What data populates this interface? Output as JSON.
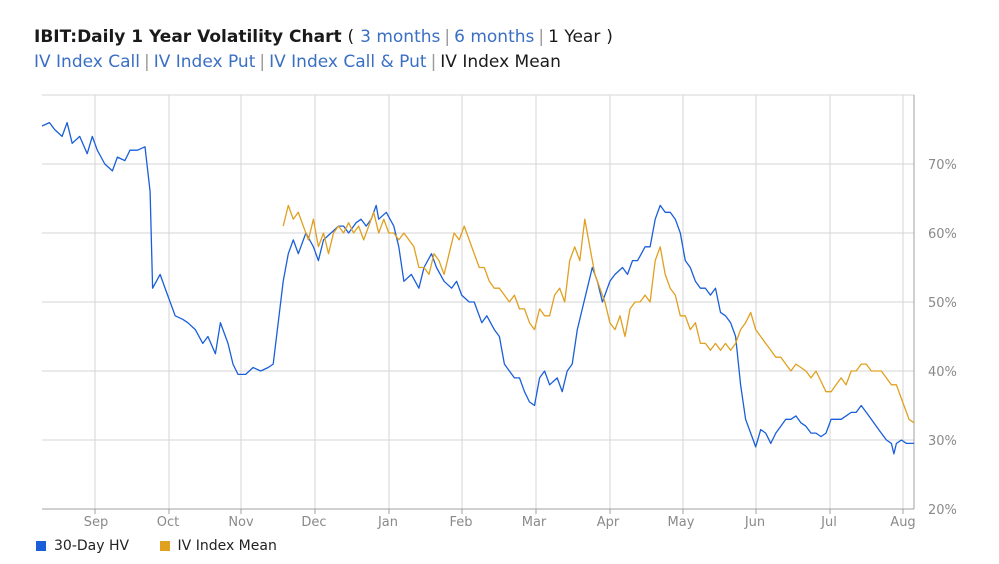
{
  "header": {
    "title": "IBIT:Daily 1 Year Volatility Chart",
    "open_paren": "(",
    "close_paren": ")",
    "sep": "|",
    "ranges": [
      "3 months",
      "6 months",
      "1 Year"
    ],
    "series_links": [
      "IV Index Call",
      "IV Index Put",
      "IV Index Call & Put",
      "IV Index Mean"
    ]
  },
  "chart_data": {
    "type": "line",
    "xlabel": "",
    "ylabel": "",
    "x_ticks": [
      "Sep",
      "Oct",
      "Nov",
      "Dec",
      "Jan",
      "Feb",
      "Mar",
      "Apr",
      "May",
      "Jun",
      "Jul",
      "Aug"
    ],
    "y_ticks": [
      "20%",
      "30%",
      "40%",
      "50%",
      "60%",
      "70%"
    ],
    "ylim": [
      20,
      80
    ],
    "y_axis_side": "right",
    "grid": true,
    "legend_position": "bottom-left",
    "series": [
      {
        "name": "30-Day HV",
        "color": "#1a5fd9",
        "points": [
          [
            0,
            75.5
          ],
          [
            3,
            76
          ],
          [
            5,
            75
          ],
          [
            8,
            74
          ],
          [
            10,
            76
          ],
          [
            12,
            73
          ],
          [
            15,
            74
          ],
          [
            18,
            71.5
          ],
          [
            20,
            74
          ],
          [
            22,
            72
          ],
          [
            25,
            70
          ],
          [
            28,
            69
          ],
          [
            30,
            71
          ],
          [
            33,
            70.5
          ],
          [
            35,
            72
          ],
          [
            38,
            72
          ],
          [
            41,
            72.5
          ],
          [
            43,
            66
          ],
          [
            44,
            52
          ],
          [
            47,
            54
          ],
          [
            50,
            51
          ],
          [
            53,
            48
          ],
          [
            56,
            47.5
          ],
          [
            58,
            47
          ],
          [
            61,
            46
          ],
          [
            64,
            44
          ],
          [
            66,
            45
          ],
          [
            69,
            42.5
          ],
          [
            71,
            47
          ],
          [
            74,
            44
          ],
          [
            76,
            41
          ],
          [
            78,
            39.5
          ],
          [
            81,
            39.5
          ],
          [
            84,
            40.5
          ],
          [
            87,
            40
          ],
          [
            90,
            40.5
          ],
          [
            92,
            41
          ],
          [
            94,
            47
          ],
          [
            96,
            53
          ],
          [
            98,
            57
          ],
          [
            100,
            59
          ],
          [
            102,
            57
          ],
          [
            105,
            60
          ],
          [
            108,
            58
          ],
          [
            110,
            56
          ],
          [
            112,
            59
          ],
          [
            115,
            60
          ],
          [
            118,
            61
          ],
          [
            120,
            61
          ],
          [
            122,
            60
          ],
          [
            125,
            61.5
          ],
          [
            127,
            62
          ],
          [
            129,
            61
          ],
          [
            131,
            62
          ],
          [
            133,
            64
          ],
          [
            134,
            62
          ],
          [
            137,
            63
          ],
          [
            140,
            61
          ],
          [
            142,
            58
          ],
          [
            144,
            53
          ],
          [
            147,
            54
          ],
          [
            150,
            52
          ],
          [
            152,
            55
          ],
          [
            155,
            57
          ],
          [
            157,
            55
          ],
          [
            160,
            53
          ],
          [
            163,
            52
          ],
          [
            165,
            53
          ],
          [
            167,
            51
          ],
          [
            170,
            50
          ],
          [
            172,
            50
          ],
          [
            175,
            47
          ],
          [
            177,
            48
          ],
          [
            180,
            46
          ],
          [
            182,
            45
          ],
          [
            184,
            41
          ],
          [
            186,
            40
          ],
          [
            188,
            39
          ],
          [
            190,
            39
          ],
          [
            192,
            37
          ],
          [
            194,
            35.5
          ],
          [
            196,
            35
          ],
          [
            198,
            39
          ],
          [
            200,
            40
          ],
          [
            202,
            38
          ],
          [
            205,
            39
          ],
          [
            207,
            37
          ],
          [
            209,
            40
          ],
          [
            211,
            41
          ],
          [
            213,
            46
          ],
          [
            215,
            49
          ],
          [
            217,
            52
          ],
          [
            219,
            55
          ],
          [
            221,
            53
          ],
          [
            223,
            50
          ],
          [
            226,
            53
          ],
          [
            228,
            54
          ],
          [
            231,
            55
          ],
          [
            233,
            54
          ],
          [
            235,
            56
          ],
          [
            237,
            56
          ],
          [
            240,
            58
          ],
          [
            242,
            58
          ],
          [
            244,
            62
          ],
          [
            246,
            64
          ],
          [
            248,
            63
          ],
          [
            250,
            63
          ],
          [
            252,
            62
          ],
          [
            254,
            60
          ],
          [
            256,
            56
          ],
          [
            258,
            55
          ],
          [
            260,
            53
          ],
          [
            262,
            52
          ],
          [
            264,
            52
          ],
          [
            266,
            51
          ],
          [
            268,
            52
          ],
          [
            270,
            48.5
          ],
          [
            272,
            48
          ],
          [
            274,
            47
          ],
          [
            276,
            45
          ],
          [
            278,
            38
          ],
          [
            280,
            33
          ],
          [
            282,
            31
          ],
          [
            284,
            29
          ],
          [
            286,
            31.5
          ],
          [
            288,
            31
          ],
          [
            290,
            29.5
          ],
          [
            292,
            31
          ],
          [
            294,
            32
          ],
          [
            296,
            33
          ],
          [
            298,
            33
          ],
          [
            300,
            33.5
          ],
          [
            302,
            32.5
          ],
          [
            304,
            32
          ],
          [
            306,
            31
          ],
          [
            308,
            31
          ],
          [
            310,
            30.5
          ],
          [
            312,
            31
          ],
          [
            314,
            33
          ],
          [
            316,
            33
          ],
          [
            318,
            33
          ],
          [
            320,
            33.5
          ],
          [
            322,
            34
          ],
          [
            324,
            34
          ],
          [
            326,
            35
          ],
          [
            328,
            34
          ],
          [
            330,
            33
          ],
          [
            332,
            32
          ],
          [
            334,
            31
          ],
          [
            336,
            30
          ],
          [
            338,
            29.5
          ],
          [
            339,
            28
          ],
          [
            340,
            29.5
          ],
          [
            342,
            30
          ],
          [
            344,
            29.5
          ],
          [
            347,
            29.5
          ]
        ]
      },
      {
        "name": "IV Index Mean",
        "color": "#e0a020",
        "points": [
          [
            96,
            61
          ],
          [
            98,
            64
          ],
          [
            100,
            62
          ],
          [
            102,
            63
          ],
          [
            104,
            61
          ],
          [
            106,
            59
          ],
          [
            108,
            62
          ],
          [
            110,
            58
          ],
          [
            112,
            60
          ],
          [
            114,
            57
          ],
          [
            116,
            60
          ],
          [
            118,
            61
          ],
          [
            120,
            60
          ],
          [
            122,
            61.5
          ],
          [
            124,
            60
          ],
          [
            126,
            61
          ],
          [
            128,
            59
          ],
          [
            130,
            61
          ],
          [
            132,
            63
          ],
          [
            134,
            60
          ],
          [
            136,
            62
          ],
          [
            138,
            60
          ],
          [
            140,
            60
          ],
          [
            142,
            59
          ],
          [
            144,
            60
          ],
          [
            146,
            59
          ],
          [
            148,
            58
          ],
          [
            150,
            55
          ],
          [
            152,
            55
          ],
          [
            154,
            54
          ],
          [
            156,
            57
          ],
          [
            158,
            56
          ],
          [
            160,
            54
          ],
          [
            162,
            57
          ],
          [
            164,
            60
          ],
          [
            166,
            59
          ],
          [
            168,
            61
          ],
          [
            170,
            59
          ],
          [
            172,
            57
          ],
          [
            174,
            55
          ],
          [
            176,
            55
          ],
          [
            178,
            53
          ],
          [
            180,
            52
          ],
          [
            182,
            52
          ],
          [
            184,
            51
          ],
          [
            186,
            50
          ],
          [
            188,
            51
          ],
          [
            190,
            49
          ],
          [
            192,
            49
          ],
          [
            194,
            47
          ],
          [
            196,
            46
          ],
          [
            198,
            49
          ],
          [
            200,
            48
          ],
          [
            202,
            48
          ],
          [
            204,
            51
          ],
          [
            206,
            52
          ],
          [
            208,
            50
          ],
          [
            210,
            56
          ],
          [
            212,
            58
          ],
          [
            214,
            56
          ],
          [
            216,
            62
          ],
          [
            218,
            58
          ],
          [
            220,
            54
          ],
          [
            222,
            52
          ],
          [
            224,
            50
          ],
          [
            226,
            47
          ],
          [
            228,
            46
          ],
          [
            230,
            48
          ],
          [
            232,
            45
          ],
          [
            234,
            49
          ],
          [
            236,
            50
          ],
          [
            238,
            50
          ],
          [
            240,
            51
          ],
          [
            242,
            50
          ],
          [
            244,
            56
          ],
          [
            246,
            58
          ],
          [
            248,
            54
          ],
          [
            250,
            52
          ],
          [
            252,
            51
          ],
          [
            254,
            48
          ],
          [
            256,
            48
          ],
          [
            258,
            46
          ],
          [
            260,
            47
          ],
          [
            262,
            44
          ],
          [
            264,
            44
          ],
          [
            266,
            43
          ],
          [
            268,
            44
          ],
          [
            270,
            43
          ],
          [
            272,
            44
          ],
          [
            274,
            43
          ],
          [
            276,
            44
          ],
          [
            278,
            46
          ],
          [
            280,
            47
          ],
          [
            282,
            48.5
          ],
          [
            284,
            46
          ],
          [
            286,
            45
          ],
          [
            288,
            44
          ],
          [
            290,
            43
          ],
          [
            292,
            42
          ],
          [
            294,
            42
          ],
          [
            296,
            41
          ],
          [
            298,
            40
          ],
          [
            300,
            41
          ],
          [
            302,
            40.5
          ],
          [
            304,
            40
          ],
          [
            306,
            39
          ],
          [
            308,
            40
          ],
          [
            310,
            38.5
          ],
          [
            312,
            37
          ],
          [
            314,
            37
          ],
          [
            316,
            38
          ],
          [
            318,
            39
          ],
          [
            320,
            38
          ],
          [
            322,
            40
          ],
          [
            324,
            40
          ],
          [
            326,
            41
          ],
          [
            328,
            41
          ],
          [
            330,
            40
          ],
          [
            332,
            40
          ],
          [
            334,
            40
          ],
          [
            336,
            39
          ],
          [
            338,
            38
          ],
          [
            340,
            38
          ],
          [
            342,
            36
          ],
          [
            344,
            34
          ],
          [
            345,
            33
          ],
          [
            347,
            32.5
          ]
        ]
      }
    ]
  },
  "legend": {
    "items": [
      {
        "label": "30-Day HV",
        "color": "#1a5fd9"
      },
      {
        "label": "IV Index Mean",
        "color": "#e0a020"
      }
    ]
  }
}
